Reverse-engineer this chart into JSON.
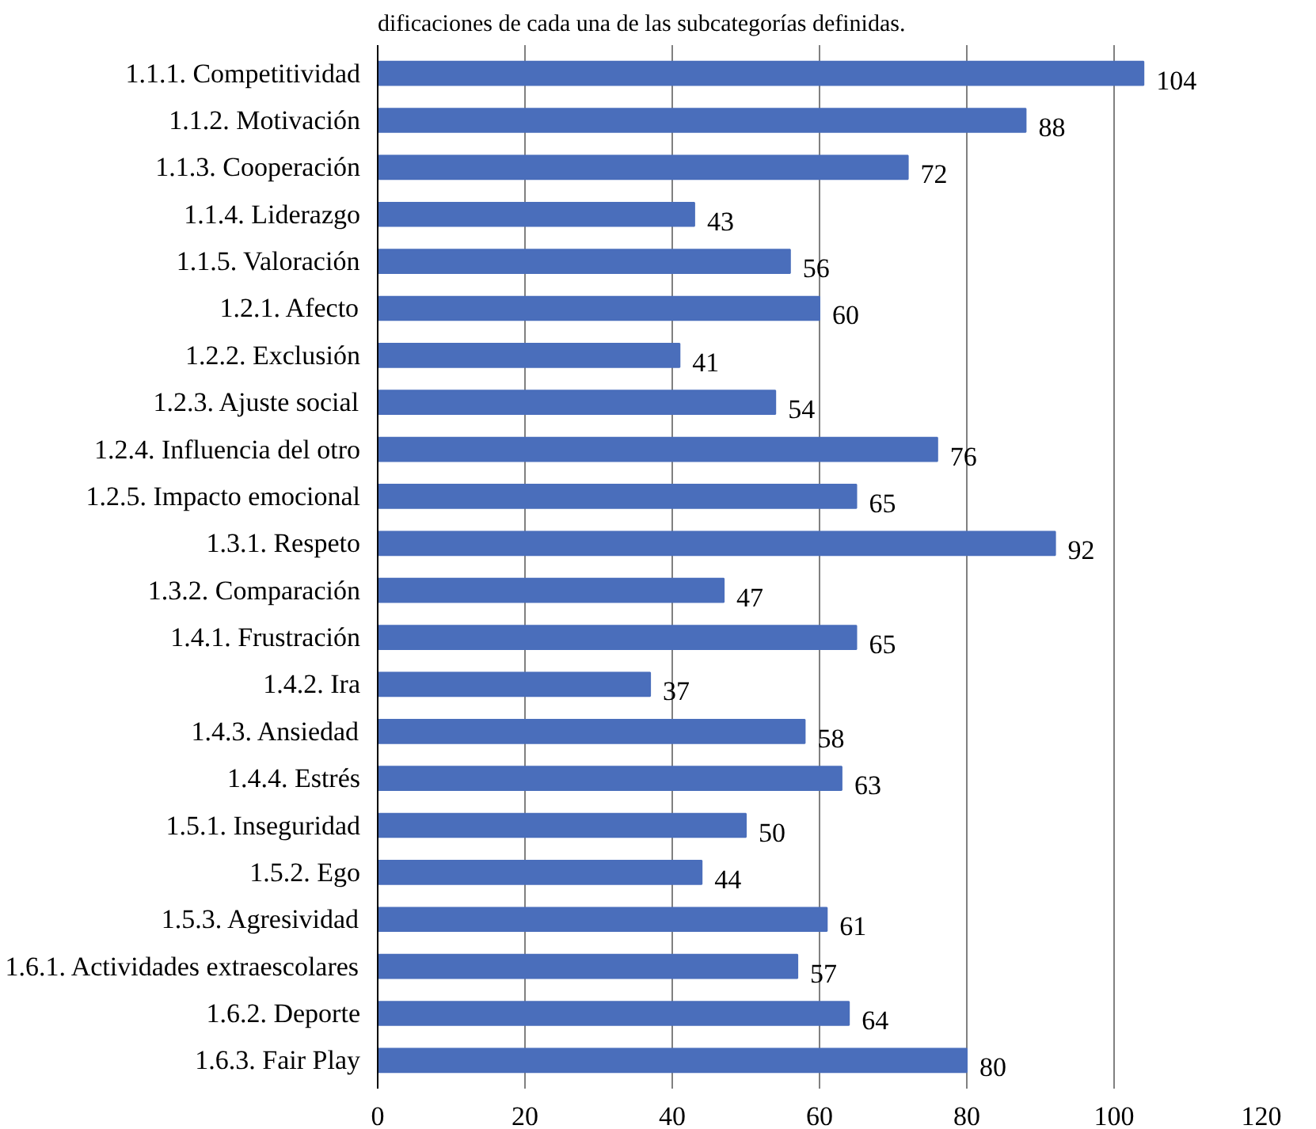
{
  "chart_data": {
    "type": "bar",
    "orientation": "horizontal",
    "title": "dificaciones de cada una de las subcategorías definidas.",
    "categories": [
      "1.1.1. Competitividad",
      "1.1.2. Motivación",
      "1.1.3. Cooperación",
      "1.1.4. Liderazgo",
      "1.1.5. Valoración",
      "1.2.1. Afecto",
      "1.2.2. Exclusión",
      "1.2.3. Ajuste social",
      "1.2.4. Influencia del otro",
      "1.2.5. Impacto emocional",
      "1.3.1. Respeto",
      "1.3.2. Comparación",
      "1.4.1. Frustración",
      "1.4.2. Ira",
      "1.4.3. Ansiedad",
      "1.4.4. Estrés",
      "1.5.1. Inseguridad",
      "1.5.2. Ego",
      "1.5.3. Agresividad",
      "1.6.1. Actividades extraescolares",
      "1.6.2. Deporte",
      "1.6.3. Fair Play"
    ],
    "values": [
      104,
      88,
      72,
      43,
      56,
      60,
      41,
      54,
      76,
      65,
      92,
      47,
      65,
      37,
      58,
      63,
      50,
      44,
      61,
      57,
      64,
      80
    ],
    "color": "#4a6ebb",
    "xlim": [
      0,
      120
    ],
    "xticks": [
      0,
      20,
      40,
      60,
      80,
      100,
      120
    ],
    "grid": "x",
    "data_labels": true
  }
}
